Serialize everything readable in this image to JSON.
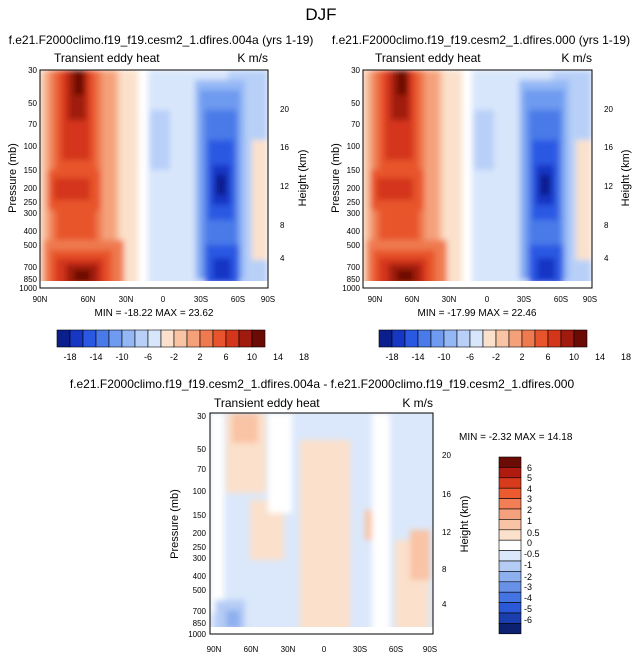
{
  "page_title": "DJF",
  "chart_data": [
    {
      "type": "contour",
      "panel_title": "f.e21.F2000climo.f19_f19.cesm2_1.dfires.004a (yrs 1-19)",
      "left_string": "Transient eddy heat",
      "right_string": "K m/s",
      "ylabel": "Pressure (mb)",
      "ylabel_right": "Height (km)",
      "x_ticks": [
        "90N",
        "60N",
        "30N",
        "0",
        "30S",
        "60S",
        "90S"
      ],
      "y_ticks": [
        "30",
        "50",
        "70",
        "100",
        "150",
        "200",
        "250",
        "300",
        "400",
        "500",
        "700",
        "850",
        "1000"
      ],
      "height_ticks": [
        "20",
        "16",
        "12",
        "8",
        "4"
      ],
      "stats": "MIN = -18.22   MAX = 23.62",
      "min": -18.22,
      "max": 23.62,
      "colorbar": {
        "orientation": "horizontal",
        "labels": [
          "-18",
          "-14",
          "-10",
          "-6",
          "-2",
          "2",
          "6",
          "10",
          "14",
          "18"
        ]
      }
    },
    {
      "type": "contour",
      "panel_title": "f.e21.F2000climo.f19_f19.cesm2_1.dfires.000 (yrs 1-19)",
      "left_string": "Transient eddy heat",
      "right_string": "K m/s",
      "ylabel": "Pressure (mb)",
      "ylabel_right": "Height (km)",
      "x_ticks": [
        "90N",
        "60N",
        "30N",
        "0",
        "30S",
        "60S",
        "90S"
      ],
      "y_ticks": [
        "30",
        "50",
        "70",
        "100",
        "150",
        "200",
        "250",
        "300",
        "400",
        "500",
        "700",
        "850",
        "1000"
      ],
      "height_ticks": [
        "20",
        "16",
        "12",
        "8",
        "4"
      ],
      "stats": "MIN = -17.99   MAX = 22.46",
      "min": -17.99,
      "max": 22.46,
      "colorbar": {
        "orientation": "horizontal",
        "labels": [
          "-18",
          "-14",
          "-10",
          "-6",
          "-2",
          "2",
          "6",
          "10",
          "14",
          "18"
        ]
      }
    },
    {
      "type": "contour",
      "panel_title": "f.e21.F2000climo.f19_f19.cesm2_1.dfires.004a - f.e21.F2000climo.f19_f19.cesm2_1.dfires.000",
      "left_string": "Transient eddy heat",
      "right_string": "K m/s",
      "ylabel": "Pressure (mb)",
      "ylabel_right": "Height (km)",
      "x_ticks": [
        "90N",
        "60N",
        "30N",
        "0",
        "30S",
        "60S",
        "90S"
      ],
      "y_ticks": [
        "30",
        "50",
        "70",
        "100",
        "150",
        "200",
        "250",
        "300",
        "400",
        "500",
        "700",
        "850",
        "1000"
      ],
      "height_ticks": [
        "20",
        "16",
        "12",
        "8",
        "4"
      ],
      "stats": "MIN = -2.32   MAX = 14.18",
      "min": -2.32,
      "max": 14.18,
      "colorbar": {
        "orientation": "vertical",
        "labels": [
          "6",
          "5",
          "4",
          "3",
          "2",
          "1",
          "0.5",
          "0",
          "-0.5",
          "-1",
          "-2",
          "-3",
          "-4",
          "-5",
          "-6"
        ]
      }
    }
  ],
  "colors": {
    "mean_levels": [
      "#0a1e8c",
      "#1636c4",
      "#2b58e3",
      "#4a7ae8",
      "#6e9af0",
      "#94b8f5",
      "#b8d0f8",
      "#d8e6fb",
      "#fbe1cc",
      "#f8c4a4",
      "#f4a17a",
      "#ef7a50",
      "#e8542c",
      "#d4361b",
      "#a01a0f",
      "#6b0b06"
    ],
    "diff_levels": [
      "#6b0b06",
      "#b01b10",
      "#d83a1c",
      "#ec5b2f",
      "#f27e56",
      "#f5a07c",
      "#f9c3a5",
      "#fbe0cb",
      "#ffffff",
      "#dbe8fb",
      "#b5ccf5",
      "#8fb0ef",
      "#6892e8",
      "#4474e2",
      "#2b58d6",
      "#1a3eae",
      "#0c2170"
    ]
  }
}
